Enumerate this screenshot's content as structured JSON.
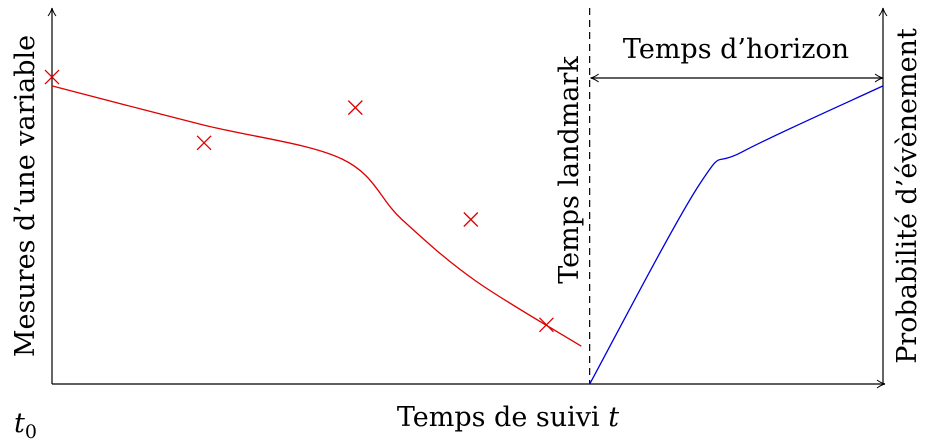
{
  "diagram": {
    "title": "",
    "left_axis_label": "Mesures d’une variable",
    "right_axis_label": "Probabilité d’évènement",
    "x_axis_label": "Temps de suivi",
    "x_axis_variable": "t",
    "origin_label": "t",
    "origin_subscript": "0",
    "landmark_label": "Temps landmark",
    "horizon_label": "Temps d’horizon"
  },
  "chart_data": {
    "type": "line",
    "title": "",
    "xlabel": "Temps de suivi t",
    "ylabel_left": "Mesures d’une variable",
    "ylabel_right": "Probabilité d’évènement",
    "xlim": [
      0,
      1
    ],
    "ylim": [
      0,
      1
    ],
    "grid": false,
    "landmark_x": 0.647,
    "horizon_end_x": 1.0,
    "observations": {
      "marker": "x",
      "color": "#e00000",
      "x": [
        0.0,
        0.183,
        0.365,
        0.504,
        0.595
      ],
      "y": [
        0.933,
        0.733,
        0.84,
        0.5,
        0.18
      ]
    },
    "series": [
      {
        "color": "#e00000",
        "x": [
          0.0,
          0.181,
          0.349,
          0.421,
          0.51,
          0.637
        ],
        "y": [
          0.906,
          0.788,
          0.684,
          0.5,
          0.313,
          0.115
        ]
      },
      {
        "color": "#0000dd",
        "x": [
          0.647,
          0.779,
          0.831,
          1.0
        ],
        "y": [
          0.0,
          0.606,
          0.706,
          0.906
        ]
      }
    ]
  }
}
